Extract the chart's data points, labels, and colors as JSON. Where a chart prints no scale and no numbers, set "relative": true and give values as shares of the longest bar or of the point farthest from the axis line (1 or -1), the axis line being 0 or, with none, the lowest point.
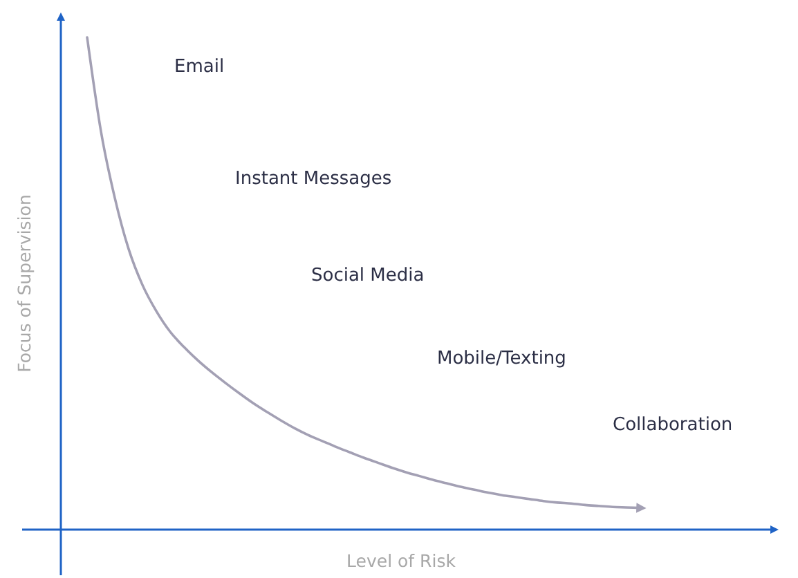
{
  "chart_data": {
    "type": "line",
    "relative": true,
    "xlabel": "Level of Risk",
    "ylabel": "Focus of Supervision",
    "categories": [
      null,
      null,
      null,
      null,
      null,
      null,
      null,
      null,
      null,
      null,
      null,
      null,
      null,
      null,
      null,
      null,
      null,
      null,
      null,
      null,
      null,
      null,
      null,
      null,
      null,
      null,
      null,
      null,
      null,
      null,
      null,
      null,
      null,
      null,
      null,
      null,
      null,
      null,
      null,
      null,
      null
    ],
    "series": [
      {
        "color": "#a3a0b4",
        "values": [
          1.0,
          0.809,
          0.674,
          0.57,
          0.497,
          0.444,
          0.402,
          0.371,
          0.344,
          0.32,
          0.298,
          0.277,
          0.257,
          0.239,
          0.222,
          0.206,
          0.192,
          0.18,
          0.168,
          0.157,
          0.146,
          0.136,
          0.126,
          0.117,
          0.109,
          0.101,
          0.094,
          0.087,
          0.081,
          0.075,
          0.07,
          0.066,
          0.062,
          0.058,
          0.055,
          0.053,
          0.05,
          0.048,
          0.046,
          0.045,
          0.044
        ]
      }
    ],
    "annotations": [
      "Email",
      "Instant Messages",
      "Social Media",
      "Mobile/Texting",
      "Collaboration"
    ]
  }
}
